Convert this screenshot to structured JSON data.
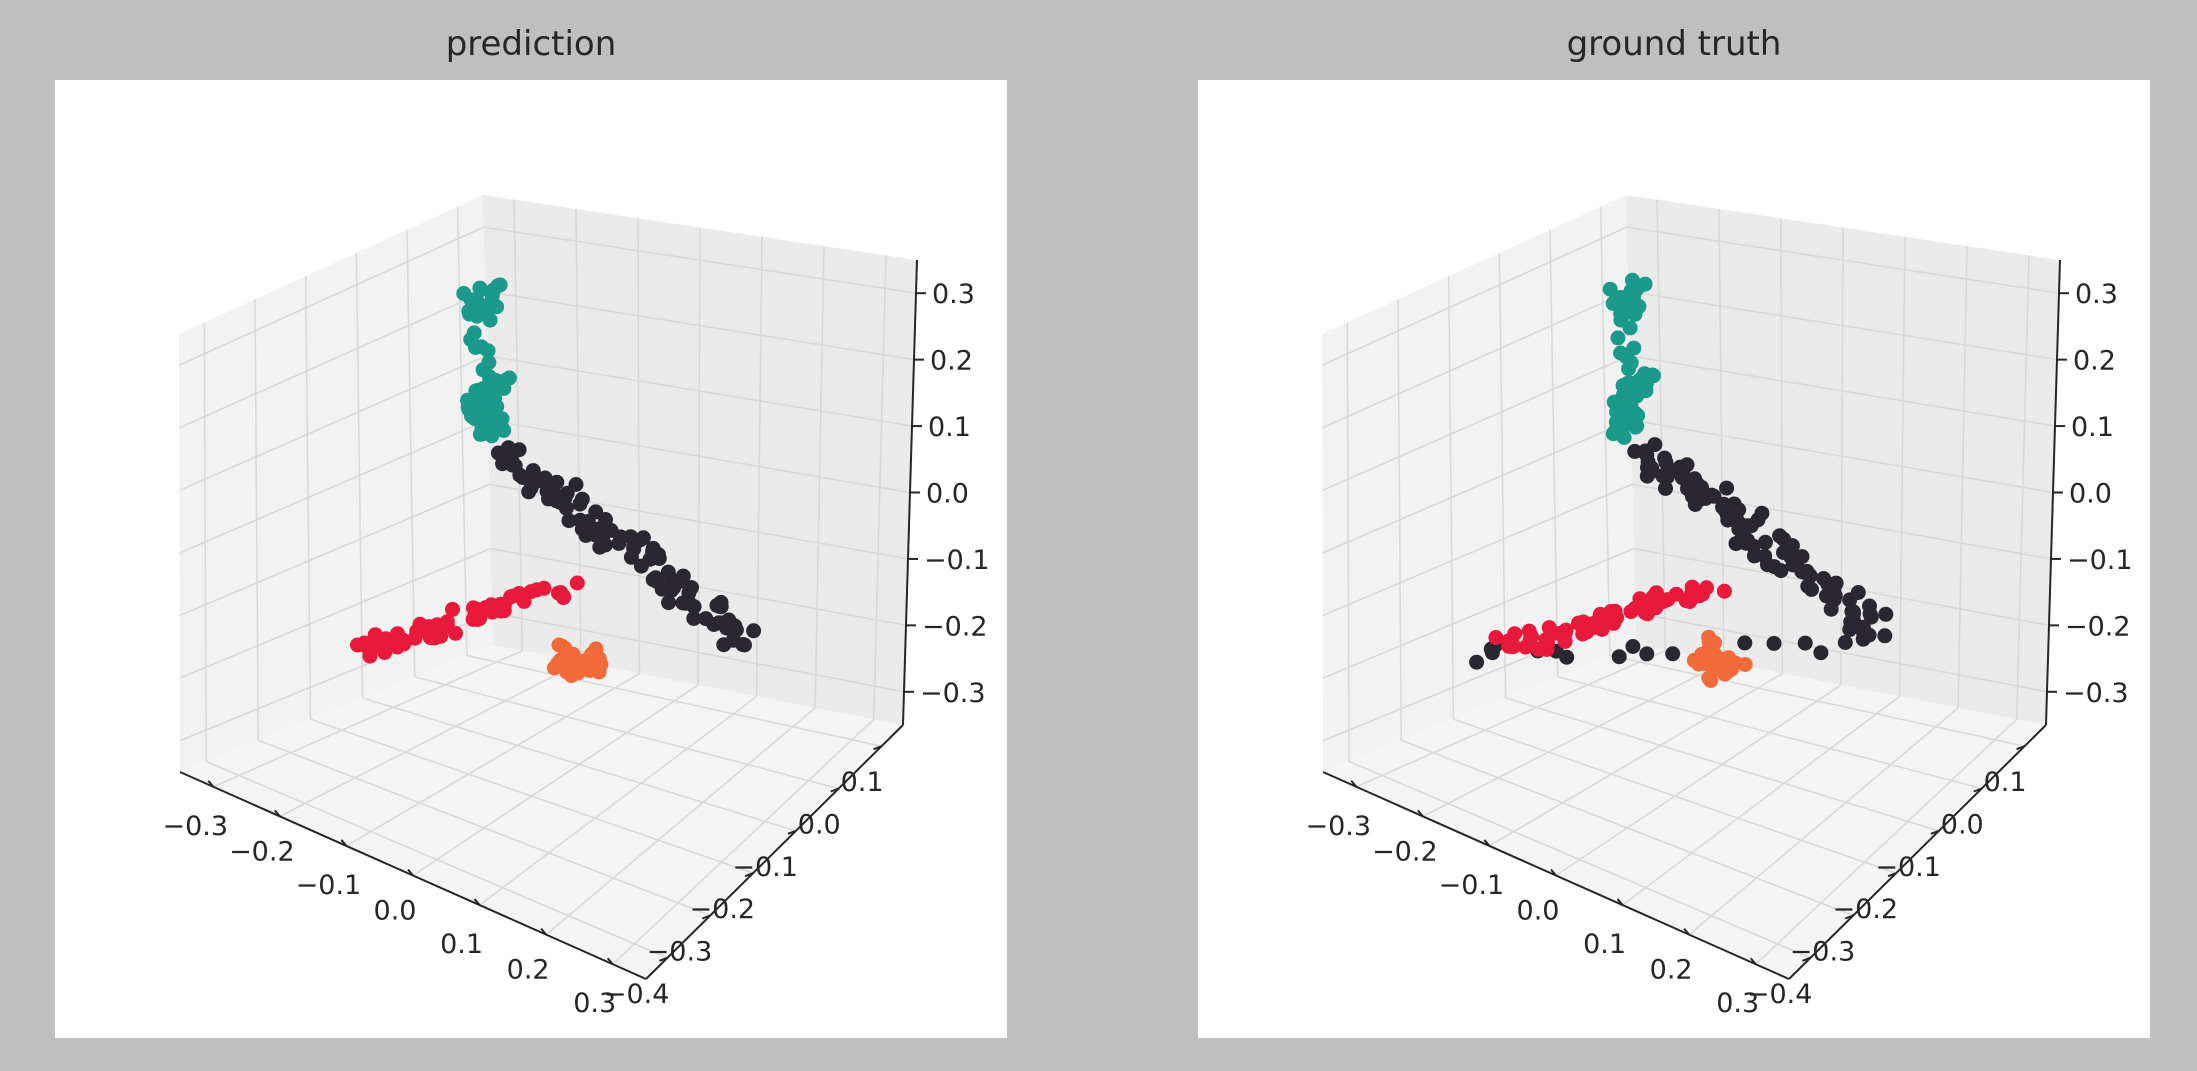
{
  "chart_data": [
    {
      "type": "scatter",
      "title": "prediction",
      "projection": "3d",
      "grid": true,
      "xticks": [
        "−0.3",
        "−0.2",
        "−0.1",
        "0.0",
        "0.1",
        "0.2",
        "0.3"
      ],
      "yticks": [
        "−0.4",
        "−0.3",
        "−0.2",
        "−0.1",
        "0.0",
        "0.1"
      ],
      "zticks": [
        "−0.3",
        "−0.2",
        "−0.1",
        "0.0",
        "0.1",
        "0.2",
        "0.3"
      ],
      "xlim": [
        -0.35,
        0.35
      ],
      "ylim": [
        -0.45,
        0.15
      ],
      "zlim": [
        -0.35,
        0.35
      ],
      "part_colors": {
        "body": "#2b2730",
        "tail": "#1b998b",
        "wing_near": "#e8193b",
        "engine": "#f26a3a"
      },
      "series": [
        {
          "part": "body",
          "color": "#2b2730",
          "points": [
            [
              -0.25,
              0.06,
              0.0
            ],
            [
              -0.18,
              0.03,
              -0.01
            ],
            [
              -0.1,
              0.0,
              -0.02
            ],
            [
              -0.02,
              -0.03,
              -0.03
            ],
            [
              0.06,
              -0.06,
              -0.04
            ],
            [
              0.14,
              -0.09,
              -0.05
            ],
            [
              0.22,
              -0.12,
              -0.06
            ],
            [
              0.3,
              -0.15,
              -0.07
            ]
          ]
        },
        {
          "part": "tail",
          "color": "#1b998b",
          "points": [
            [
              -0.28,
              0.07,
              0.2
            ],
            [
              -0.29,
              0.07,
              0.25
            ],
            [
              -0.3,
              0.1,
              0.08
            ],
            [
              -0.33,
              0.14,
              0.06
            ],
            [
              -0.25,
              0.02,
              0.08
            ],
            [
              -0.21,
              -0.02,
              0.07
            ]
          ]
        },
        {
          "part": "wing_near",
          "color": "#e8193b",
          "points": [
            [
              -0.05,
              -0.1,
              -0.1
            ],
            [
              -0.1,
              -0.18,
              -0.12
            ],
            [
              -0.15,
              -0.25,
              -0.14
            ],
            [
              -0.19,
              -0.3,
              -0.15
            ],
            [
              0.0,
              -0.12,
              -0.09
            ]
          ]
        },
        {
          "part": "engine",
          "color": "#f26a3a",
          "points": [
            [
              0.04,
              -0.18,
              -0.13
            ],
            [
              0.07,
              -0.2,
              -0.15
            ],
            [
              0.08,
              -0.17,
              -0.15
            ]
          ]
        }
      ]
    },
    {
      "type": "scatter",
      "title": "ground truth",
      "projection": "3d",
      "grid": true,
      "xticks": [
        "−0.3",
        "−0.2",
        "−0.1",
        "0.0",
        "0.1",
        "0.2",
        "0.3"
      ],
      "yticks": [
        "−0.4",
        "−0.3",
        "−0.2",
        "−0.1",
        "0.0",
        "0.1"
      ],
      "zticks": [
        "−0.3",
        "−0.2",
        "−0.1",
        "0.0",
        "0.1",
        "0.2",
        "0.3"
      ],
      "xlim": [
        -0.35,
        0.35
      ],
      "ylim": [
        -0.45,
        0.15
      ],
      "zlim": [
        -0.35,
        0.35
      ],
      "part_colors": {
        "body": "#2b2730",
        "tail": "#1b998b",
        "wing_near": "#e8193b",
        "engine": "#f26a3a"
      },
      "series": [
        {
          "part": "body",
          "color": "#2b2730",
          "points": [
            [
              -0.25,
              0.06,
              0.0
            ],
            [
              -0.18,
              0.03,
              -0.01
            ],
            [
              -0.1,
              0.0,
              -0.02
            ],
            [
              -0.02,
              -0.03,
              -0.03
            ],
            [
              0.06,
              -0.06,
              -0.04
            ],
            [
              0.14,
              -0.09,
              -0.05
            ],
            [
              0.22,
              -0.12,
              -0.06
            ],
            [
              0.3,
              -0.15,
              -0.07
            ],
            [
              -0.2,
              -0.31,
              -0.16
            ]
          ]
        },
        {
          "part": "tail",
          "color": "#1b998b",
          "points": [
            [
              -0.28,
              0.07,
              0.2
            ],
            [
              -0.29,
              0.07,
              0.25
            ],
            [
              -0.3,
              0.1,
              0.08
            ],
            [
              -0.33,
              0.14,
              0.06
            ],
            [
              -0.25,
              0.02,
              0.08
            ],
            [
              -0.21,
              -0.02,
              0.07
            ]
          ]
        },
        {
          "part": "wing_near",
          "color": "#e8193b",
          "points": [
            [
              -0.05,
              -0.1,
              -0.1
            ],
            [
              -0.1,
              -0.18,
              -0.12
            ],
            [
              -0.15,
              -0.25,
              -0.14
            ],
            [
              -0.19,
              -0.3,
              -0.15
            ],
            [
              0.0,
              -0.12,
              -0.09
            ]
          ]
        },
        {
          "part": "engine",
          "color": "#f26a3a",
          "points": [
            [
              0.04,
              -0.18,
              -0.13
            ],
            [
              0.07,
              -0.2,
              -0.15
            ],
            [
              0.08,
              -0.17,
              -0.15
            ]
          ]
        }
      ]
    }
  ]
}
